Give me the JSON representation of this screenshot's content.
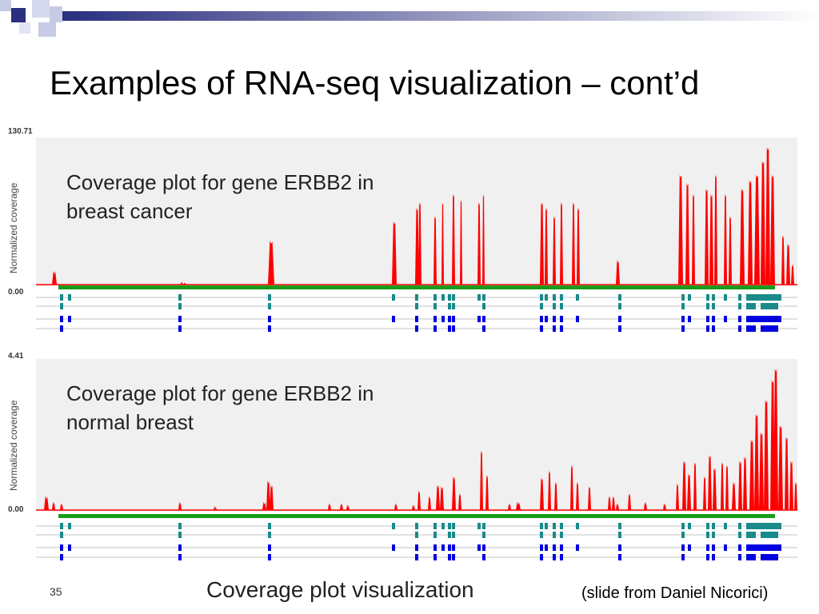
{
  "slide": {
    "title": "Examples of RNA-seq visualization – cont’d",
    "footer_title": "Coverage plot visualization",
    "credit": "(slide from Daniel Nicorici)",
    "page_number": "35"
  },
  "colors": {
    "coverage": "#ff0000",
    "gene_bar": "#1a9c1a",
    "exon_teal": "#1a8a8a",
    "exon_blue": "#0000e0",
    "plot_bg": "#f0f0f0",
    "deco_navy": "#2a2f7f"
  },
  "panels": [
    {
      "y_axis_label": "Normalized coverage",
      "y_max_label": "130.71",
      "y_min_label": "0.00",
      "caption_line1": "Coverage plot for gene ERBB2 in",
      "caption_line2": "breast cancer"
    },
    {
      "y_axis_label": "Normalized coverage",
      "y_max_label": "4.41",
      "y_min_label": "0.00",
      "caption_line1": "Coverage plot for gene ERBB2 in",
      "caption_line2": "normal breast"
    }
  ]
}
